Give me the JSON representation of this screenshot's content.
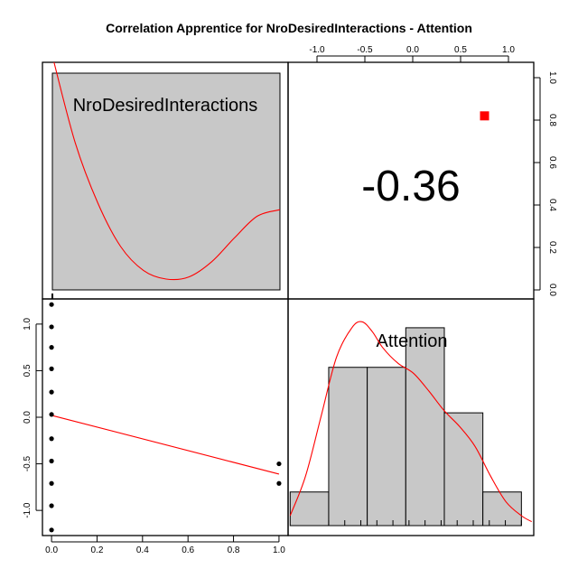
{
  "title": "Correlation Apprentice for NroDesiredInteractions - Attention",
  "colors": {
    "fit": "#ff0000",
    "hist_fill": "#c8c8c8",
    "frame": "#000000",
    "marker": "#ff0000"
  },
  "chart_data": [
    {
      "panel": "top-left",
      "type": "area",
      "label": "NroDesiredInteractions",
      "density_curve": {
        "x": [
          0.0,
          0.1,
          0.2,
          0.3,
          0.4,
          0.5,
          0.6,
          0.7,
          0.8,
          0.9,
          1.0
        ],
        "y": [
          1.08,
          0.68,
          0.4,
          0.2,
          0.09,
          0.05,
          0.06,
          0.13,
          0.24,
          0.34,
          0.37
        ]
      },
      "ylim": [
        0,
        1
      ]
    },
    {
      "panel": "top-right",
      "type": "table",
      "correlation_text": "-0.36",
      "correlation": -0.36,
      "top_axis": {
        "ticks": [
          -1.0,
          -0.5,
          0.0,
          0.5,
          1.0
        ],
        "labels": [
          "-1.0",
          "-0.5",
          "0.0",
          "0.5",
          "1.0"
        ]
      },
      "right_axis": {
        "ticks": [
          0.0,
          0.2,
          0.4,
          0.6,
          0.8,
          1.0
        ],
        "labels": [
          "0.0",
          "0.2",
          "0.4",
          "0.6",
          "0.8",
          "1.0"
        ]
      },
      "marker": {
        "x": 0.75,
        "y": 0.82
      }
    },
    {
      "panel": "bottom-left",
      "type": "scatter",
      "x": [
        0,
        0,
        0,
        0,
        0,
        0,
        0,
        0,
        0,
        0,
        0,
        1,
        1
      ],
      "y": [
        1.21,
        0.97,
        0.75,
        0.52,
        0.27,
        0.03,
        -0.23,
        -0.47,
        -0.71,
        -0.95,
        -1.21,
        -0.5,
        -0.71
      ],
      "fit_line": {
        "x": [
          0,
          1
        ],
        "y": [
          0.02,
          -0.61
        ]
      },
      "x_axis": {
        "ticks": [
          0,
          0.2,
          0.4,
          0.6,
          0.8,
          1.0
        ],
        "labels": [
          "0.0",
          "0.2",
          "0.4",
          "0.6",
          "0.8",
          "1.0"
        ]
      },
      "y_axis": {
        "ticks": [
          -1.0,
          -0.5,
          0.0,
          0.5,
          1.0
        ],
        "labels": [
          "-1.0",
          "-0.5",
          "0.0",
          "0.5",
          "1.0"
        ]
      },
      "xlim": [
        -0.04,
        1.04
      ],
      "ylim": [
        -1.27,
        1.27
      ]
    },
    {
      "panel": "bottom-right",
      "type": "bar",
      "label": "Attention",
      "bins": [
        {
          "from": -1.25,
          "to": -0.875,
          "height": 0.17
        },
        {
          "from": -0.875,
          "to": -0.5,
          "height": 0.8
        },
        {
          "from": -0.5,
          "to": -0.125,
          "height": 0.8
        },
        {
          "from": -0.125,
          "to": 0.25,
          "height": 1.0
        },
        {
          "from": 0.25,
          "to": 0.625,
          "height": 0.57
        },
        {
          "from": 0.625,
          "to": 1.0,
          "height": 0.17
        }
      ],
      "density_curve": {
        "x": [
          -1.25,
          -1.1,
          -0.95,
          -0.8,
          -0.65,
          -0.55,
          -0.45,
          -0.35,
          -0.2,
          -0.05,
          0.1,
          0.25,
          0.4,
          0.55,
          0.7,
          0.85,
          1.0,
          1.1
        ],
        "y": [
          0.05,
          0.25,
          0.55,
          0.85,
          1.0,
          1.03,
          0.98,
          0.9,
          0.82,
          0.77,
          0.68,
          0.58,
          0.5,
          0.4,
          0.25,
          0.12,
          0.05,
          0.02
        ]
      },
      "xlim": [
        -1.27,
        1.12
      ],
      "ylim": [
        0,
        1.1
      ]
    }
  ]
}
